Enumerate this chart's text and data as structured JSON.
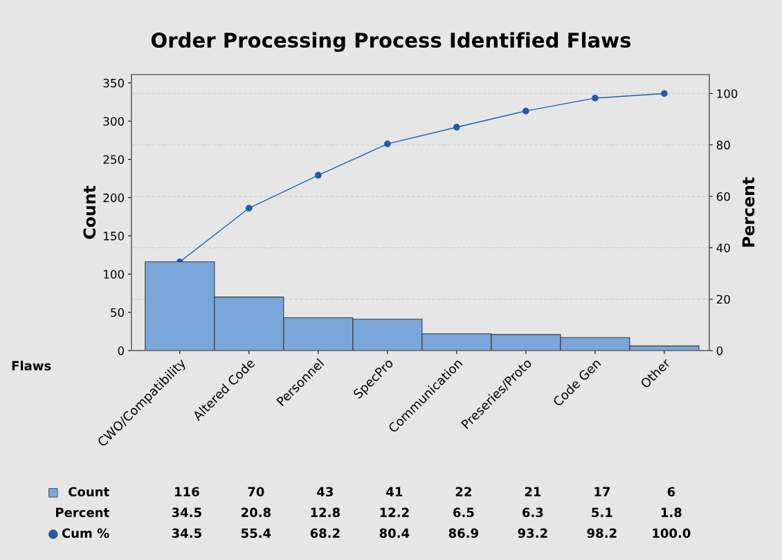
{
  "chart_data": {
    "type": "bar",
    "title": "Order Processing Process Identified Flaws",
    "xlabel": "Flaws",
    "ylabel": "Count",
    "y2label": "Percent",
    "categories": [
      "CWO/Compatibility",
      "Altered Code",
      "Personnel",
      "SpecPro",
      "Communication",
      "Preseries/Proto",
      "Code Gen",
      "Other"
    ],
    "series": [
      {
        "name": "Count",
        "color": "#7ba6da",
        "values": [
          116,
          70,
          43,
          41,
          22,
          21,
          17,
          6
        ],
        "value_labels": [
          "116",
          "70",
          "43",
          "41",
          "22",
          "21",
          "17",
          "6"
        ]
      },
      {
        "name": "Cum %",
        "type": "line",
        "axis": "y2",
        "color": "#1f5fa8",
        "values": [
          34.5,
          55.4,
          68.2,
          80.4,
          86.9,
          93.2,
          98.2,
          100.0
        ],
        "value_labels": [
          "34.5",
          "55.4",
          "68.2",
          "80.4",
          "86.9",
          "93.2",
          "98.2",
          "100.0"
        ]
      }
    ],
    "annotations": [
      "Percent",
      "34.5",
      "20.8",
      "12.8",
      "12.2",
      "6.5",
      "6.3",
      "5.1",
      "1.8"
    ],
    "ylim": [
      0,
      361
    ],
    "yticks": [
      0,
      50,
      100,
      150,
      200,
      250,
      300,
      350
    ],
    "y2lim": [
      0,
      107.4
    ],
    "y2ticks": [
      0,
      20,
      40,
      60,
      80,
      100
    ],
    "grid": "y2",
    "legend": "bottom left",
    "marker": "circle",
    "line_style": "solid"
  }
}
